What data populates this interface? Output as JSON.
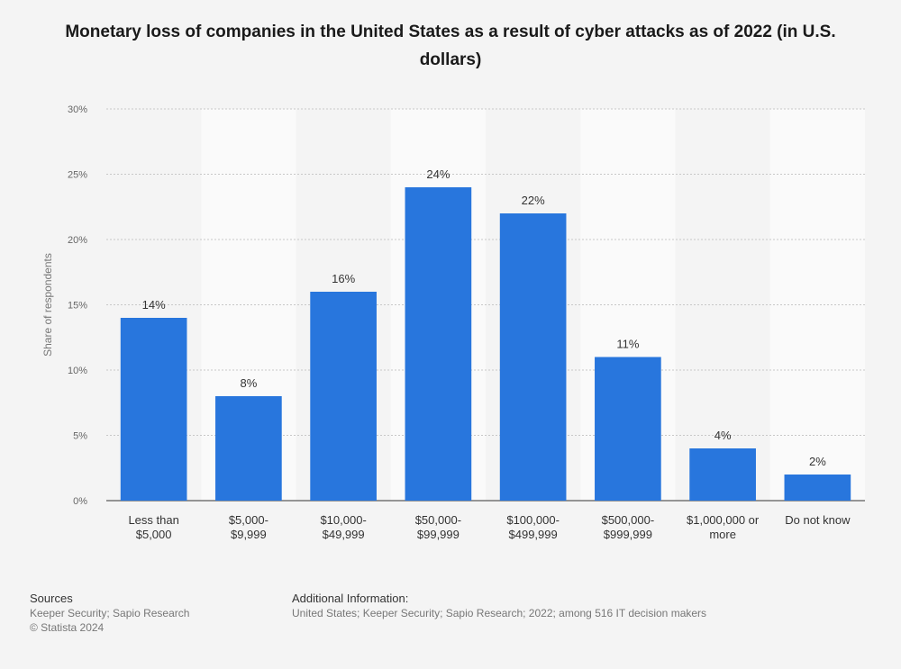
{
  "chart_data": {
    "type": "bar",
    "title": "Monetary loss of companies in the United States as a result of cyber attacks as of 2022 (in U.S. dollars)",
    "categories": [
      [
        "Less than",
        "$5,000"
      ],
      [
        "$5,000-",
        "$9,999"
      ],
      [
        "$10,000-",
        "$49,999"
      ],
      [
        "$50,000-",
        "$99,999"
      ],
      [
        "$100,000-",
        "$499,999"
      ],
      [
        "$500,000-",
        "$999,999"
      ],
      [
        "$1,000,000 or",
        "more"
      ],
      [
        "Do not know"
      ]
    ],
    "values": [
      14,
      8,
      16,
      24,
      22,
      11,
      4,
      2
    ],
    "value_labels": [
      "14%",
      "8%",
      "16%",
      "24%",
      "22%",
      "11%",
      "4%",
      "2%"
    ],
    "xlabel": "",
    "ylabel": "Share of respondents",
    "ylim": [
      0,
      30
    ],
    "yticks": [
      0,
      5,
      10,
      15,
      20,
      25,
      30
    ],
    "ytick_labels": [
      "0%",
      "5%",
      "10%",
      "15%",
      "20%",
      "25%",
      "30%"
    ],
    "grid": true,
    "bar_color": "#2876dd"
  },
  "footer": {
    "sources_heading": "Sources",
    "sources_text": "Keeper Security; Sapio Research",
    "copyright": "© Statista 2024",
    "additional_heading": "Additional Information:",
    "additional_text": "United States; Keeper Security; Sapio Research; 2022; among 516 IT decision makers"
  }
}
